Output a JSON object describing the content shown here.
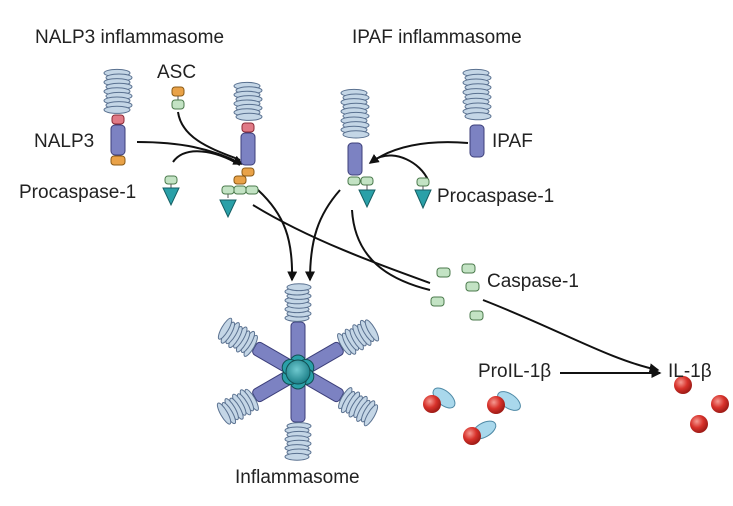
{
  "titles": {
    "nalp3_inflammasome": "NALP3 inflammasome",
    "ipaf_inflammasome": "IPAF inflammasome"
  },
  "labels": {
    "asc": "ASC",
    "nalp3": "NALP3",
    "procaspase1_left": "Procaspase-1",
    "ipaf": "IPAF",
    "procaspase1_right": "Procaspase-1",
    "caspase1": "Caspase-1",
    "pro_il1b": "ProIL-1β",
    "il1b": "IL-1β",
    "inflammasome": "Inflammasome"
  },
  "colors": {
    "lrr_fill": "#c4d6e6",
    "lrr_stroke": "#5a7190",
    "nacht_fill": "#7c82c2",
    "nacht_stroke": "#3c3f7a",
    "pyd": "#e07a86",
    "asc_card": "#e9a248",
    "caspase_domain": "#c3e3c4",
    "caspase_tip": "#2aa0a8",
    "il1b_red": "#d8322b",
    "pro_segment": "#a9d8ec",
    "arrow": "#111111"
  }
}
